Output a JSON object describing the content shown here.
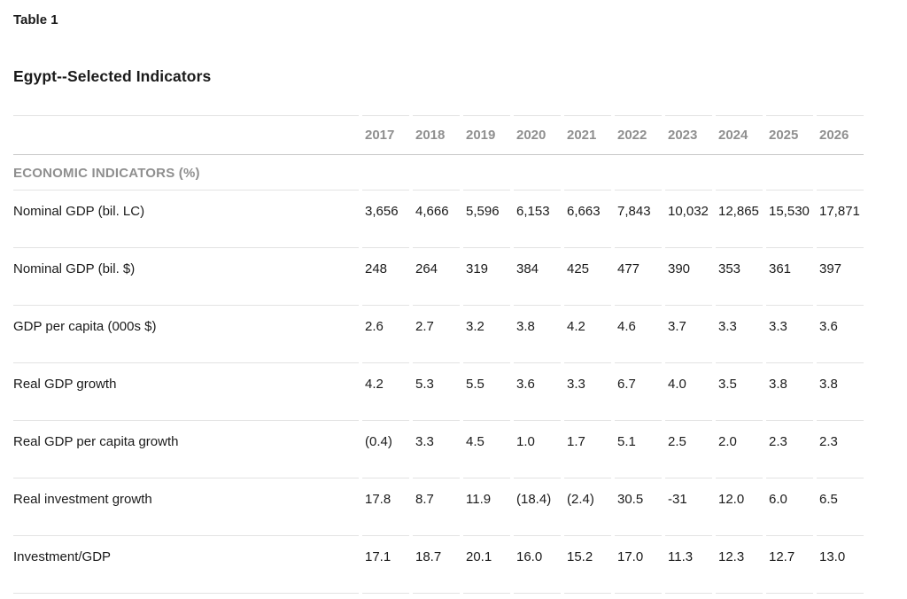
{
  "page": {
    "table_number": "Table 1",
    "title": "Egypt--Selected Indicators"
  },
  "colors": {
    "body_text": "#1a1a1a",
    "muted_header_text": "#8f8f8f",
    "row_separator": "#e3e3e3",
    "header_underline": "#c8c8c8",
    "background": "#ffffff"
  },
  "table": {
    "section_header": "ECONOMIC INDICATORS (%)",
    "years": [
      "2017",
      "2018",
      "2019",
      "2020",
      "2021",
      "2022",
      "2023",
      "2024",
      "2025",
      "2026"
    ],
    "rows": [
      {
        "label": "Nominal GDP (bil. LC)",
        "values": [
          "3,656",
          "4,666",
          "5,596",
          "6,153",
          "6,663",
          "7,843",
          "10,032",
          "12,865",
          "15,530",
          "17,871"
        ]
      },
      {
        "label": "Nominal GDP (bil. $)",
        "values": [
          "248",
          "264",
          "319",
          "384",
          "425",
          "477",
          "390",
          "353",
          "361",
          "397"
        ]
      },
      {
        "label": "GDP per capita (000s $)",
        "values": [
          "2.6",
          "2.7",
          "3.2",
          "3.8",
          "4.2",
          "4.6",
          "3.7",
          "3.3",
          "3.3",
          "3.6"
        ]
      },
      {
        "label": "Real GDP growth",
        "values": [
          "4.2",
          "5.3",
          "5.5",
          "3.6",
          "3.3",
          "6.7",
          "4.0",
          "3.5",
          "3.8",
          "3.8"
        ]
      },
      {
        "label": "Real GDP per capita growth",
        "values": [
          "(0.4)",
          "3.3",
          "4.5",
          "1.0",
          "1.7",
          "5.1",
          "2.5",
          "2.0",
          "2.3",
          "2.3"
        ]
      },
      {
        "label": "Real investment growth",
        "values": [
          "17.8",
          "8.7",
          "11.9",
          "(18.4)",
          "(2.4)",
          "30.5",
          "-31",
          "12.0",
          "6.0",
          "6.5"
        ]
      },
      {
        "label": "Investment/GDP",
        "values": [
          "17.1",
          "18.7",
          "20.1",
          "16.0",
          "15.2",
          "17.0",
          "11.3",
          "12.3",
          "12.7",
          "13.0"
        ]
      }
    ]
  }
}
